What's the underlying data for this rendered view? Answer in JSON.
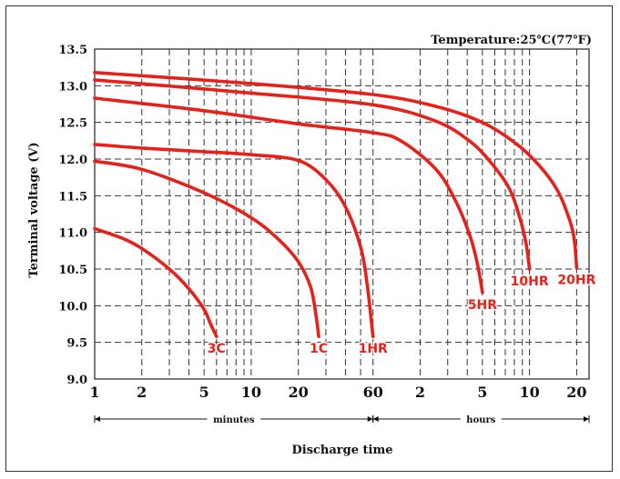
{
  "chart_data": {
    "type": "line",
    "title": "",
    "annotation": "Temperature:25℃(77℉)",
    "ylabel": "Terminal voltage (V)",
    "xlabel": "Discharge time",
    "x_scale": "log",
    "x_unit": "minutes",
    "xlim": [
      1,
      1440
    ],
    "ylim": [
      9.0,
      13.5
    ],
    "y_ticks": [
      "9.0",
      "9.5",
      "10.0",
      "10.5",
      "11.0",
      "11.5",
      "12.0",
      "12.5",
      "13.0",
      "13.5"
    ],
    "x_tick_labels": [
      {
        "label": "1",
        "minutes": 1
      },
      {
        "label": "2",
        "minutes": 2
      },
      {
        "label": "5",
        "minutes": 5
      },
      {
        "label": "10",
        "minutes": 10
      },
      {
        "label": "20",
        "minutes": 20
      },
      {
        "label": "60",
        "minutes": 60
      },
      {
        "label": "2",
        "minutes": 120
      },
      {
        "label": "5",
        "minutes": 300
      },
      {
        "label": "10",
        "minutes": 600
      },
      {
        "label": "20",
        "minutes": 1200
      }
    ],
    "x_ranges": [
      {
        "label": "minutes",
        "from": 1,
        "to": 60
      },
      {
        "label": "hours",
        "from": 60,
        "to": 1440
      }
    ],
    "grid": true,
    "line_color": "#e8201a",
    "series": [
      {
        "name": "3C",
        "x": [
          1,
          1.5,
          2,
          3,
          4,
          5,
          5.5,
          6
        ],
        "y": [
          11.05,
          10.92,
          10.78,
          10.5,
          10.23,
          9.95,
          9.75,
          9.58
        ]
      },
      {
        "name": "1C",
        "x": [
          1,
          2,
          5,
          10,
          15,
          20,
          24,
          26,
          27
        ],
        "y": [
          11.97,
          11.86,
          11.54,
          11.2,
          10.9,
          10.6,
          10.25,
          9.85,
          9.58
        ]
      },
      {
        "name": "1HR",
        "x": [
          1,
          2,
          5,
          10,
          20,
          30,
          40,
          50,
          55,
          60
        ],
        "y": [
          12.2,
          12.15,
          12.1,
          12.06,
          11.98,
          11.72,
          11.35,
          10.8,
          10.3,
          9.58
        ]
      },
      {
        "name": "5HR",
        "x": [
          1,
          5,
          20,
          60,
          90,
          150,
          200,
          250,
          280,
          300
        ],
        "y": [
          12.83,
          12.66,
          12.48,
          12.36,
          12.25,
          11.87,
          11.45,
          10.95,
          10.55,
          10.18
        ]
      },
      {
        "name": "10HR",
        "x": [
          1,
          10,
          60,
          150,
          250,
          350,
          450,
          520,
          570,
          600
        ],
        "y": [
          13.08,
          12.9,
          12.74,
          12.52,
          12.24,
          11.92,
          11.58,
          11.2,
          10.85,
          10.5
        ]
      },
      {
        "name": "20HR",
        "x": [
          1,
          10,
          60,
          150,
          300,
          500,
          700,
          900,
          1050,
          1150,
          1200
        ],
        "y": [
          13.18,
          13.03,
          12.88,
          12.72,
          12.5,
          12.2,
          11.9,
          11.58,
          11.25,
          10.95,
          10.52
        ]
      }
    ]
  }
}
